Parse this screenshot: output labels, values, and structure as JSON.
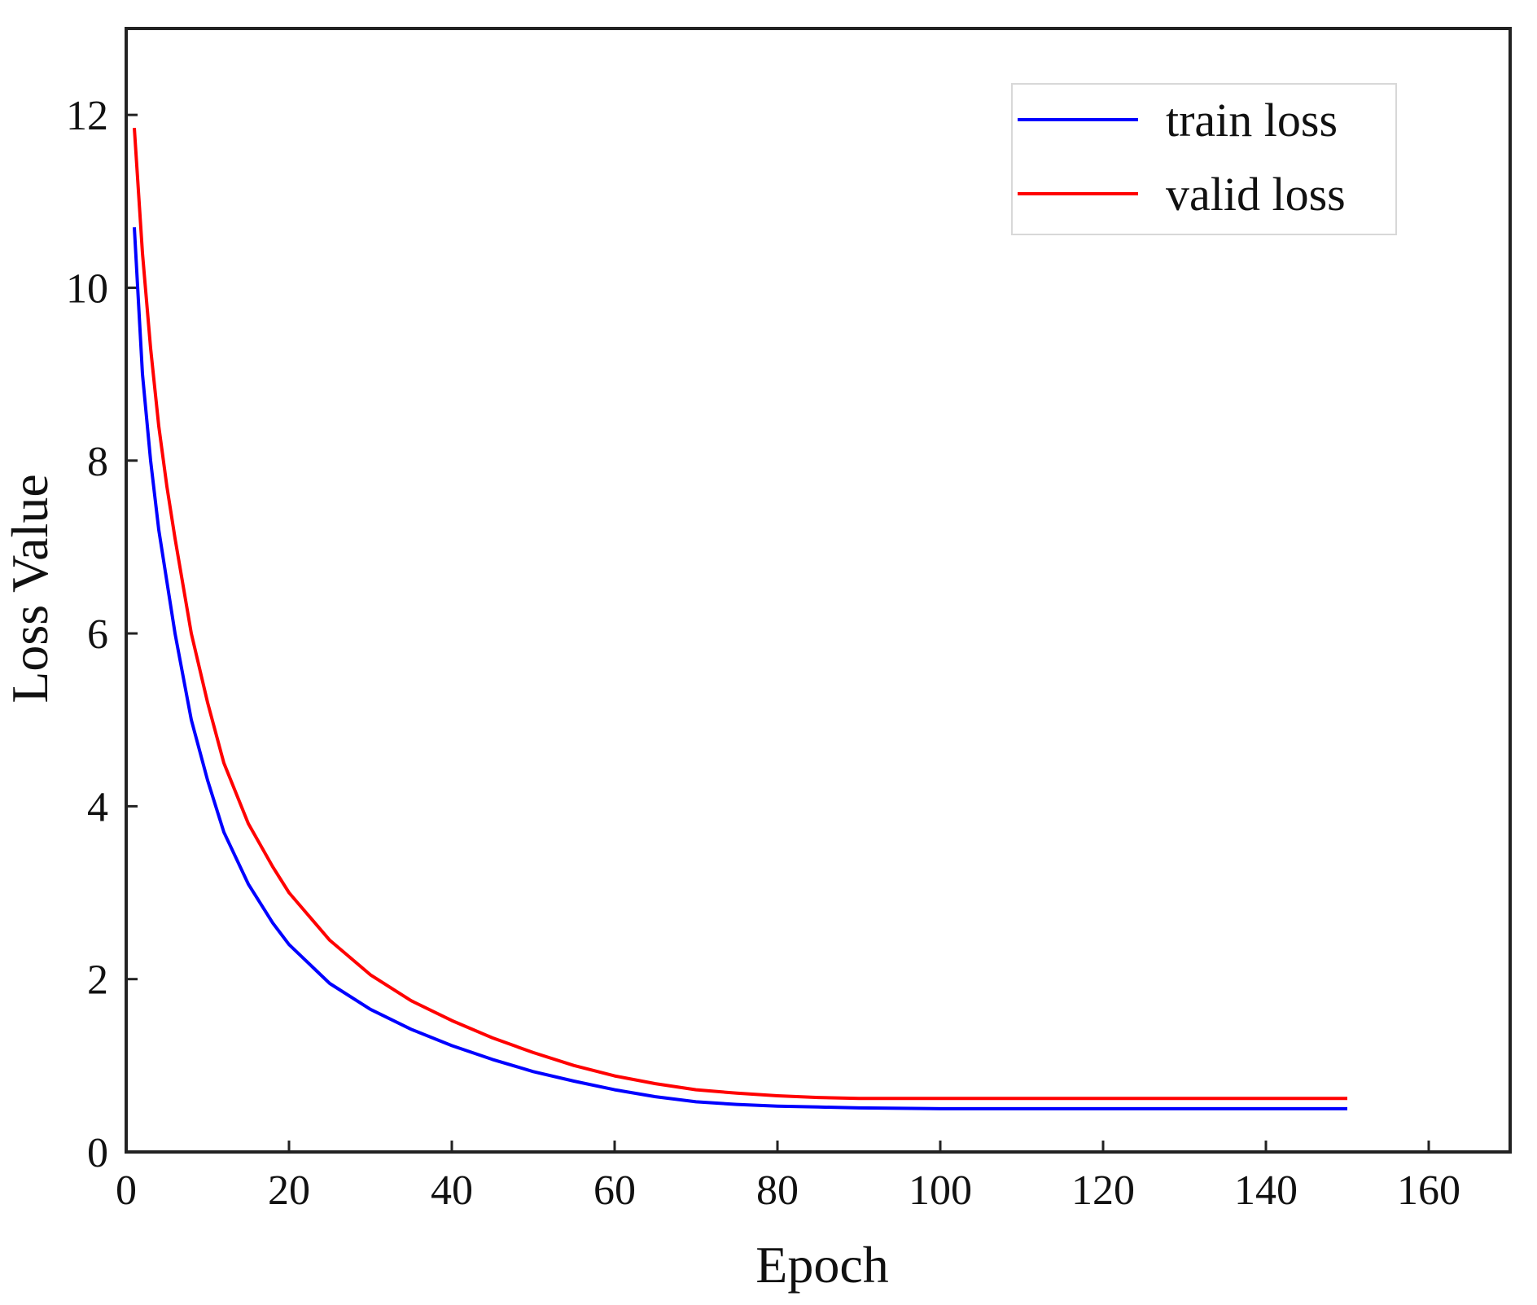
{
  "chart_data": {
    "type": "line",
    "title": "",
    "xlabel": "Epoch",
    "ylabel": "Loss Value",
    "xlim": [
      0,
      170
    ],
    "ylim": [
      0,
      13
    ],
    "xticks": [
      0,
      20,
      40,
      60,
      80,
      100,
      120,
      140,
      160
    ],
    "yticks": [
      0,
      2,
      4,
      6,
      8,
      10,
      12
    ],
    "grid": false,
    "legend_position": "top-right",
    "x": [
      1,
      2,
      3,
      4,
      5,
      6,
      8,
      10,
      12,
      15,
      18,
      20,
      25,
      30,
      35,
      40,
      45,
      50,
      55,
      60,
      65,
      70,
      75,
      80,
      85,
      90,
      100,
      110,
      120,
      130,
      140,
      150
    ],
    "series": [
      {
        "name": "train loss",
        "color": "#0000ff",
        "values": [
          10.7,
          9.0,
          8.0,
          7.2,
          6.6,
          6.0,
          5.0,
          4.3,
          3.7,
          3.1,
          2.65,
          2.4,
          1.95,
          1.65,
          1.42,
          1.23,
          1.07,
          0.93,
          0.82,
          0.72,
          0.64,
          0.58,
          0.55,
          0.53,
          0.52,
          0.51,
          0.5,
          0.5,
          0.5,
          0.5,
          0.5,
          0.5
        ]
      },
      {
        "name": "valid loss",
        "color": "#ff0000",
        "values": [
          11.85,
          10.4,
          9.3,
          8.4,
          7.7,
          7.1,
          6.0,
          5.2,
          4.5,
          3.8,
          3.3,
          3.0,
          2.45,
          2.05,
          1.75,
          1.52,
          1.32,
          1.15,
          1.0,
          0.88,
          0.79,
          0.72,
          0.68,
          0.65,
          0.63,
          0.62,
          0.62,
          0.62,
          0.62,
          0.62,
          0.62,
          0.62
        ]
      }
    ]
  }
}
